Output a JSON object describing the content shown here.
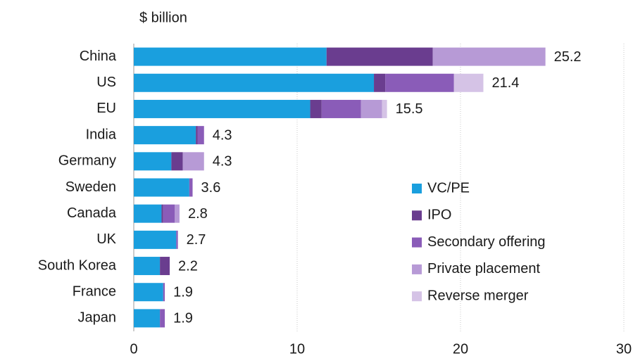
{
  "chart_data": {
    "type": "stacked_barh",
    "axis_label": "$ billion",
    "categories": [
      "China",
      "US",
      "EU",
      "India",
      "Germany",
      "Sweden",
      "Canada",
      "UK",
      "South Korea",
      "France",
      "Japan"
    ],
    "series": [
      {
        "name": "VC/PE",
        "color": "#1a9fde",
        "values": [
          11.8,
          14.7,
          10.8,
          3.8,
          2.3,
          3.4,
          1.7,
          2.6,
          1.6,
          1.8,
          1.6
        ]
      },
      {
        "name": "IPO",
        "color": "#6a3d8f",
        "values": [
          6.5,
          0.7,
          0.7,
          0.1,
          0.7,
          0,
          0.1,
          0,
          0.6,
          0,
          0
        ]
      },
      {
        "name": "Secondary offering",
        "color": "#8a5cb8",
        "values": [
          0,
          4.2,
          2.4,
          0.4,
          0,
          0.2,
          0.7,
          0.1,
          0,
          0.1,
          0.3
        ]
      },
      {
        "name": "Private placement",
        "color": "#b79ad6",
        "values": [
          6.9,
          0,
          1.3,
          0,
          1.3,
          0,
          0.3,
          0,
          0,
          0,
          0
        ]
      },
      {
        "name": "Reverse merger",
        "color": "#d5c3e6",
        "values": [
          0,
          1.8,
          0.3,
          0,
          0,
          0,
          0,
          0,
          0,
          0,
          0
        ]
      }
    ],
    "total_labels": [
      25.2,
      21.4,
      15.5,
      4.3,
      4.3,
      3.6,
      2.8,
      2.7,
      2.2,
      1.9,
      1.9
    ],
    "xlim": [
      0,
      30
    ],
    "xticks": [
      0,
      10,
      20,
      30
    ],
    "grid": true,
    "legend": "lower right"
  }
}
